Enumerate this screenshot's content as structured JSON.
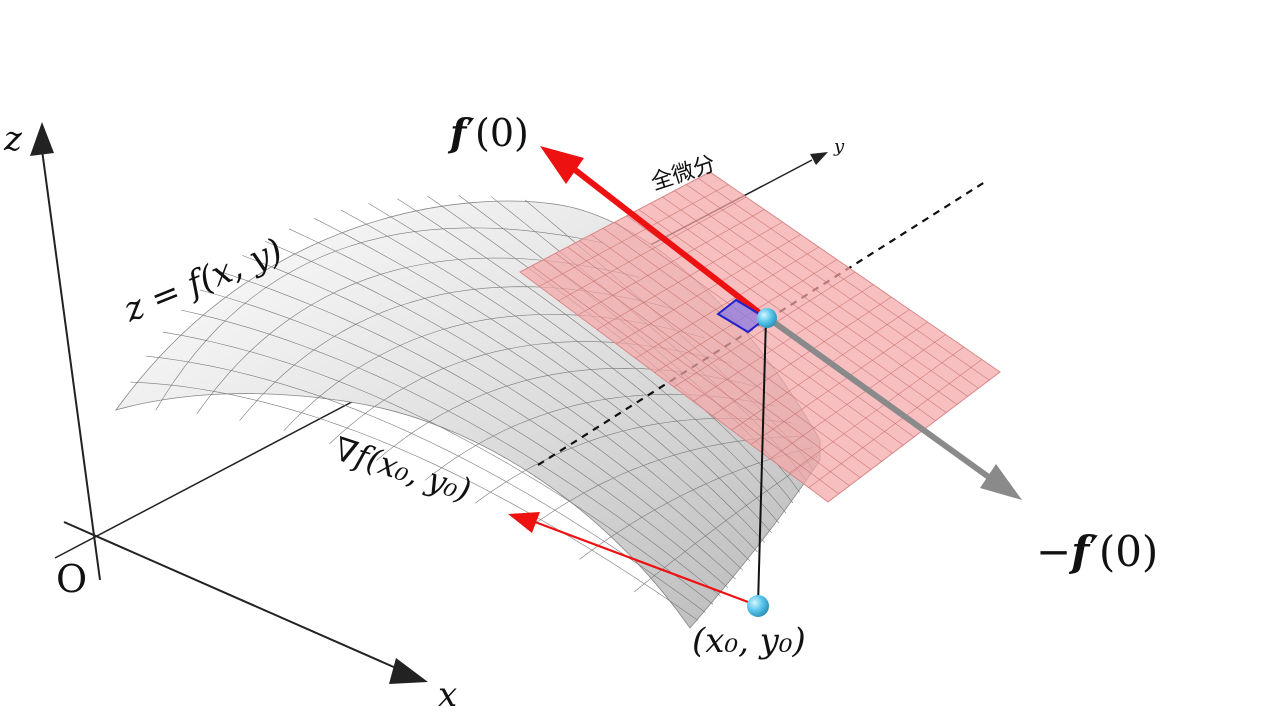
{
  "labels": {
    "axis_z": "z",
    "axis_x": "x",
    "axis_y": "y",
    "origin": "O",
    "surface_eq": "z = f(x, y)",
    "plane_label": "全微分",
    "fprime_name": "f",
    "fprime_rest": "′(0)",
    "neg_fprime_sign": "−",
    "neg_fprime_name": "f",
    "neg_fprime_rest": "′(0)",
    "gradient": "∇f(x₀, y₀)",
    "point": "(x₀, y₀)"
  },
  "colors": {
    "surface_fill": "#d8d8d8",
    "surface_grid": "#7a7a7a",
    "plane_fill": "#f4a6a6",
    "plane_grid": "#c46a6a",
    "arrow_red": "#ee1111",
    "arrow_gray": "#8a8a8a",
    "point": "#5bc8ec",
    "right_angle": "#2222cc"
  }
}
